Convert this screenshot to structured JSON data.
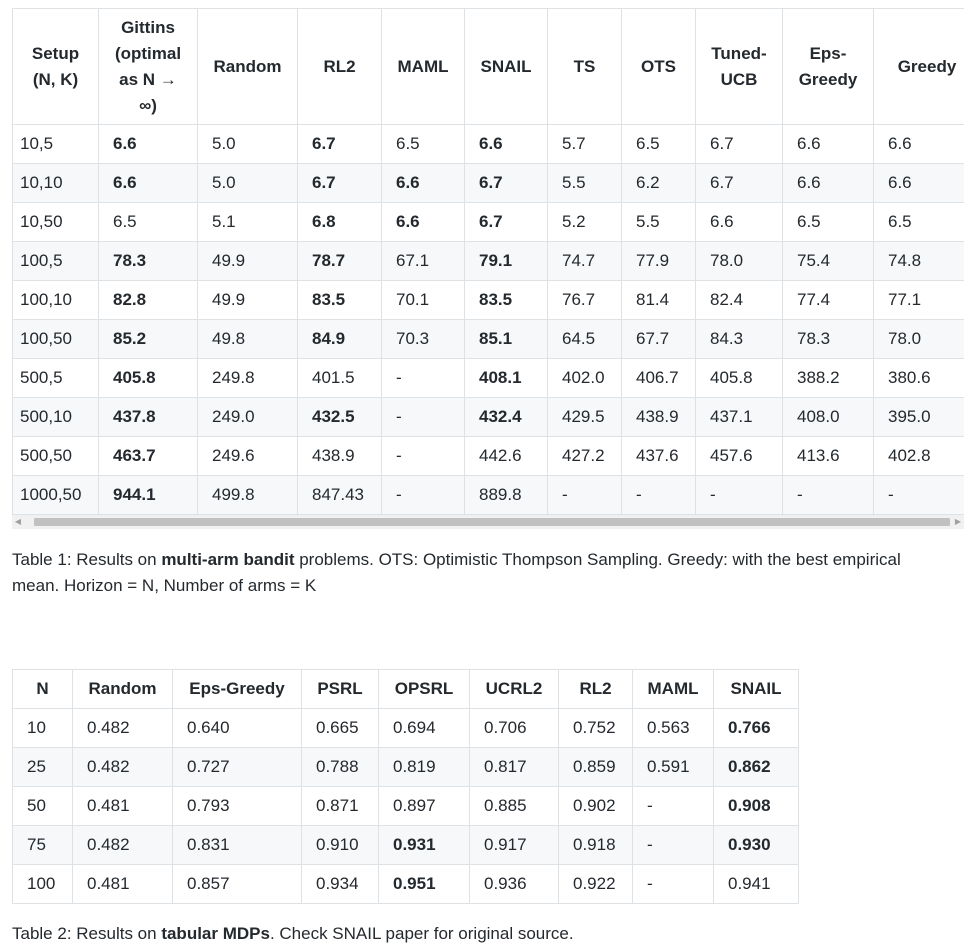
{
  "table1": {
    "headers": [
      [
        "Setup",
        "(N, K)"
      ],
      [
        "Gittins",
        "(optimal",
        "as N →",
        "∞)"
      ],
      [
        "Random"
      ],
      [
        "RL2"
      ],
      [
        "MAML"
      ],
      [
        "SNAIL"
      ],
      [
        "TS"
      ],
      [
        "OTS"
      ],
      [
        "Tuned-",
        "UCB"
      ],
      [
        "Eps-",
        "Greedy"
      ],
      [
        "Greedy"
      ]
    ],
    "rows": [
      [
        "10,5",
        "6.6",
        "5.0",
        "6.7",
        "6.5",
        "6.6",
        "5.7",
        "6.5",
        "6.7",
        "6.6",
        "6.6"
      ],
      [
        "10,10",
        "6.6",
        "5.0",
        "6.7",
        "6.6",
        "6.7",
        "5.5",
        "6.2",
        "6.7",
        "6.6",
        "6.6"
      ],
      [
        "10,50",
        "6.5",
        "5.1",
        "6.8",
        "6.6",
        "6.7",
        "5.2",
        "5.5",
        "6.6",
        "6.5",
        "6.5"
      ],
      [
        "100,5",
        "78.3",
        "49.9",
        "78.7",
        "67.1",
        "79.1",
        "74.7",
        "77.9",
        "78.0",
        "75.4",
        "74.8"
      ],
      [
        "100,10",
        "82.8",
        "49.9",
        "83.5",
        "70.1",
        "83.5",
        "76.7",
        "81.4",
        "82.4",
        "77.4",
        "77.1"
      ],
      [
        "100,50",
        "85.2",
        "49.8",
        "84.9",
        "70.3",
        "85.1",
        "64.5",
        "67.7",
        "84.3",
        "78.3",
        "78.0"
      ],
      [
        "500,5",
        "405.8",
        "249.8",
        "401.5",
        "-",
        "408.1",
        "402.0",
        "406.7",
        "405.8",
        "388.2",
        "380.6"
      ],
      [
        "500,10",
        "437.8",
        "249.0",
        "432.5",
        "-",
        "432.4",
        "429.5",
        "438.9",
        "437.1",
        "408.0",
        "395.0"
      ],
      [
        "500,50",
        "463.7",
        "249.6",
        "438.9",
        "-",
        "442.6",
        "427.2",
        "437.6",
        "457.6",
        "413.6",
        "402.8"
      ],
      [
        "1000,50",
        "944.1",
        "499.8",
        "847.43",
        "-",
        "889.8",
        "-",
        "-",
        "-",
        "-",
        "-"
      ]
    ],
    "bold": [
      [
        1,
        3,
        5
      ],
      [
        1,
        3,
        4,
        5
      ],
      [
        3,
        4,
        5
      ],
      [
        1,
        3,
        5
      ],
      [
        1,
        3,
        5
      ],
      [
        1,
        3,
        5
      ],
      [
        1,
        5
      ],
      [
        1,
        3,
        5
      ],
      [
        1
      ],
      [
        1
      ]
    ]
  },
  "caption1": {
    "prefix": "Table 1: Results on ",
    "bold": "multi-arm bandit",
    "suffix": " problems. OTS: Optimistic Thompson Sampling. Greedy: with the best empirical mean. Horizon = N, Number of arms = K"
  },
  "table2": {
    "headers": [
      "N",
      "Random",
      "Eps-Greedy",
      "PSRL",
      "OPSRL",
      "UCRL2",
      "RL2",
      "MAML",
      "SNAIL"
    ],
    "rows": [
      [
        "10",
        "0.482",
        "0.640",
        "0.665",
        "0.694",
        "0.706",
        "0.752",
        "0.563",
        "0.766"
      ],
      [
        "25",
        "0.482",
        "0.727",
        "0.788",
        "0.819",
        "0.817",
        "0.859",
        "0.591",
        "0.862"
      ],
      [
        "50",
        "0.481",
        "0.793",
        "0.871",
        "0.897",
        "0.885",
        "0.902",
        "-",
        "0.908"
      ],
      [
        "75",
        "0.482",
        "0.831",
        "0.910",
        "0.931",
        "0.917",
        "0.918",
        "-",
        "0.930"
      ],
      [
        "100",
        "0.481",
        "0.857",
        "0.934",
        "0.951",
        "0.936",
        "0.922",
        "-",
        "0.941"
      ]
    ],
    "bold": [
      [
        8
      ],
      [
        8
      ],
      [
        8
      ],
      [
        4,
        8
      ],
      [
        4
      ]
    ]
  },
  "caption2": {
    "prefix": "Table 2: Results on ",
    "bold": "tabular MDPs",
    "suffix": ". Check SNAIL paper for original source."
  },
  "scrollbar": {
    "left_arrow": "◀",
    "right_arrow": "▶"
  }
}
